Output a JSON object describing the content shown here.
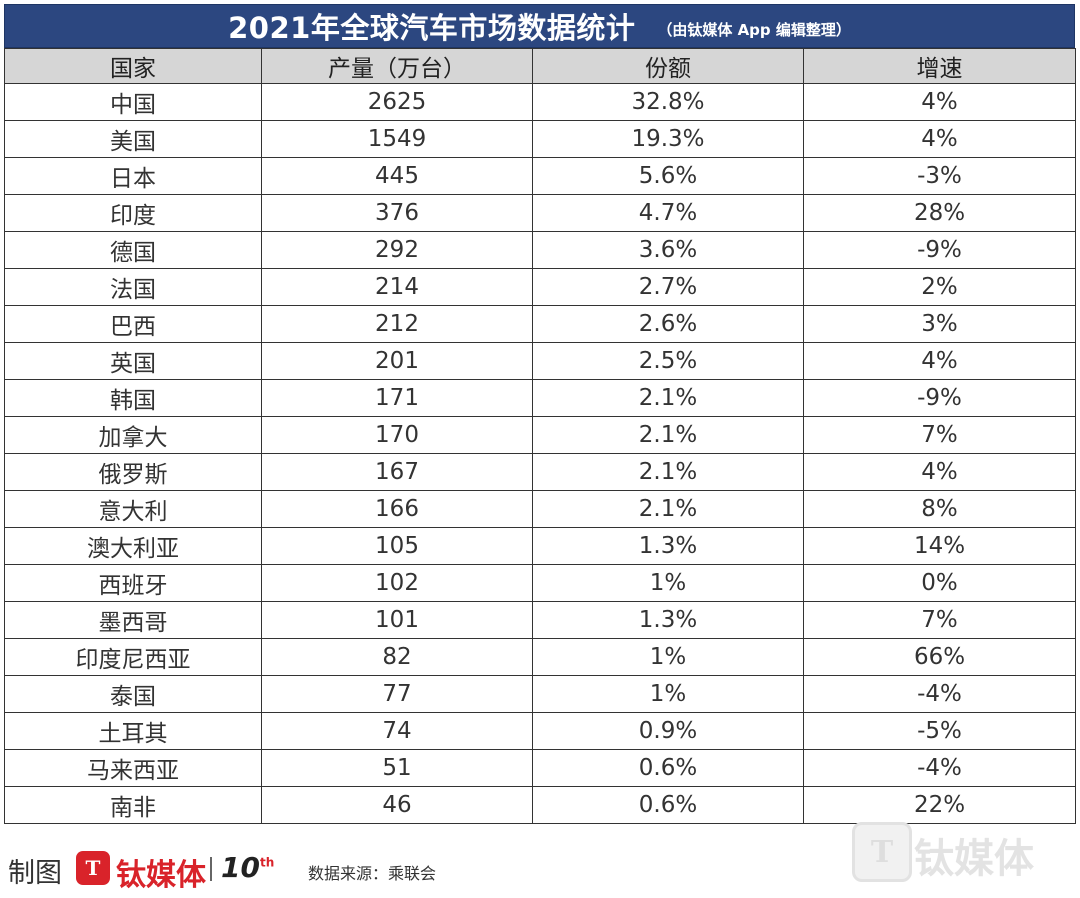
{
  "title": {
    "main": "2021年全球汽车市场数据统计",
    "note": "（由钛媒体 App 编辑整理）"
  },
  "columns": [
    "国家",
    "产量（万台）",
    "份额",
    "增速"
  ],
  "rows": [
    [
      "中国",
      "2625",
      "32.8%",
      "4%"
    ],
    [
      "美国",
      "1549",
      "19.3%",
      "4%"
    ],
    [
      "日本",
      "445",
      "5.6%",
      "-3%"
    ],
    [
      "印度",
      "376",
      "4.7%",
      "28%"
    ],
    [
      "德国",
      "292",
      "3.6%",
      "-9%"
    ],
    [
      "法国",
      "214",
      "2.7%",
      "2%"
    ],
    [
      "巴西",
      "212",
      "2.6%",
      "3%"
    ],
    [
      "英国",
      "201",
      "2.5%",
      "4%"
    ],
    [
      "韩国",
      "171",
      "2.1%",
      "-9%"
    ],
    [
      "加拿大",
      "170",
      "2.1%",
      "7%"
    ],
    [
      "俄罗斯",
      "167",
      "2.1%",
      "4%"
    ],
    [
      "意大利",
      "166",
      "2.1%",
      "8%"
    ],
    [
      "澳大利亚",
      "105",
      "1.3%",
      "14%"
    ],
    [
      "西班牙",
      "102",
      "1%",
      "0%"
    ],
    [
      "墨西哥",
      "101",
      "1.3%",
      "7%"
    ],
    [
      "印度尼西亚",
      "82",
      "1%",
      "66%"
    ],
    [
      "泰国",
      "77",
      "1%",
      "-4%"
    ],
    [
      "土耳其",
      "74",
      "0.9%",
      "-5%"
    ],
    [
      "马来西亚",
      "51",
      "0.6%",
      "-4%"
    ],
    [
      "南非",
      "46",
      "0.6%",
      "22%"
    ]
  ],
  "footer": {
    "made_by": "制图",
    "logo_mark": "T",
    "logo_name": "钛媒体",
    "logo_ten": "10",
    "logo_ten_sup": "th",
    "source": "数据来源：乘联会"
  },
  "watermark": {
    "mark": "T",
    "text": "钛媒体"
  },
  "colors": {
    "title_bg": "#2c4780",
    "header_bg": "#d6d6d6",
    "brand_red": "#d9232a"
  }
}
